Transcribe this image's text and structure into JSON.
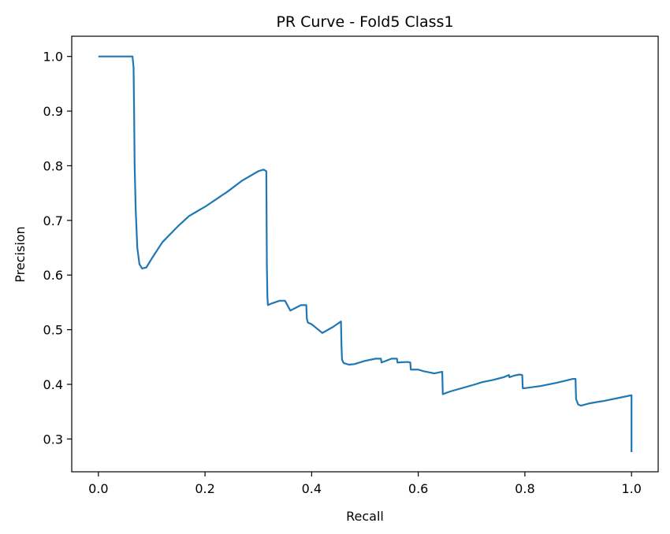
{
  "chart_data": {
    "type": "line",
    "title": "PR Curve - Fold5 Class1",
    "xlabel": "Recall",
    "ylabel": "Precision",
    "xlim": [
      -0.05,
      1.05
    ],
    "ylim": [
      0.24,
      1.037
    ],
    "xticks": [
      0.0,
      0.2,
      0.4,
      0.6,
      0.8,
      1.0
    ],
    "xtick_labels": [
      "0.0",
      "0.2",
      "0.4",
      "0.6",
      "0.8",
      "1.0"
    ],
    "yticks": [
      0.3,
      0.4,
      0.5,
      0.6,
      0.7,
      0.8,
      0.9,
      1.0
    ],
    "ytick_labels": [
      "0.3",
      "0.4",
      "0.5",
      "0.6",
      "0.7",
      "0.8",
      "0.9",
      "1.0"
    ],
    "grid": false,
    "series": [
      {
        "color": "#1f77b4",
        "x": [
          0.0,
          0.062,
          0.064,
          0.066,
          0.067,
          0.068,
          0.07,
          0.073,
          0.077,
          0.082,
          0.09,
          0.1,
          0.12,
          0.15,
          0.17,
          0.2,
          0.22,
          0.235,
          0.24,
          0.27,
          0.3,
          0.31,
          0.315,
          0.316,
          0.317,
          0.318,
          0.325,
          0.34,
          0.35,
          0.36,
          0.37,
          0.38,
          0.39,
          0.391,
          0.393,
          0.4,
          0.41,
          0.42,
          0.44,
          0.455,
          0.456,
          0.457,
          0.46,
          0.47,
          0.48,
          0.5,
          0.52,
          0.53,
          0.531,
          0.55,
          0.56,
          0.561,
          0.58,
          0.585,
          0.586,
          0.6,
          0.61,
          0.62,
          0.63,
          0.64,
          0.645,
          0.646,
          0.66,
          0.7,
          0.72,
          0.74,
          0.76,
          0.77,
          0.771,
          0.78,
          0.79,
          0.795,
          0.796,
          0.8,
          0.83,
          0.86,
          0.89,
          0.895,
          0.896,
          0.9,
          0.905,
          0.92,
          0.95,
          0.98,
          1.0,
          1.0
        ],
        "y": [
          1.0,
          1.0,
          1.0,
          0.98,
          0.9,
          0.8,
          0.72,
          0.65,
          0.62,
          0.612,
          0.614,
          0.63,
          0.66,
          0.69,
          0.708,
          0.725,
          0.738,
          0.748,
          0.751,
          0.773,
          0.79,
          0.793,
          0.79,
          0.62,
          0.56,
          0.545,
          0.548,
          0.553,
          0.553,
          0.535,
          0.54,
          0.545,
          0.545,
          0.52,
          0.513,
          0.51,
          0.502,
          0.494,
          0.505,
          0.515,
          0.47,
          0.445,
          0.439,
          0.436,
          0.437,
          0.443,
          0.447,
          0.447,
          0.44,
          0.447,
          0.447,
          0.44,
          0.441,
          0.44,
          0.427,
          0.427,
          0.424,
          0.422,
          0.42,
          0.422,
          0.423,
          0.382,
          0.387,
          0.398,
          0.404,
          0.408,
          0.413,
          0.417,
          0.413,
          0.416,
          0.418,
          0.417,
          0.393,
          0.393,
          0.397,
          0.403,
          0.41,
          0.41,
          0.373,
          0.363,
          0.361,
          0.365,
          0.37,
          0.376,
          0.38,
          0.276
        ]
      }
    ]
  }
}
